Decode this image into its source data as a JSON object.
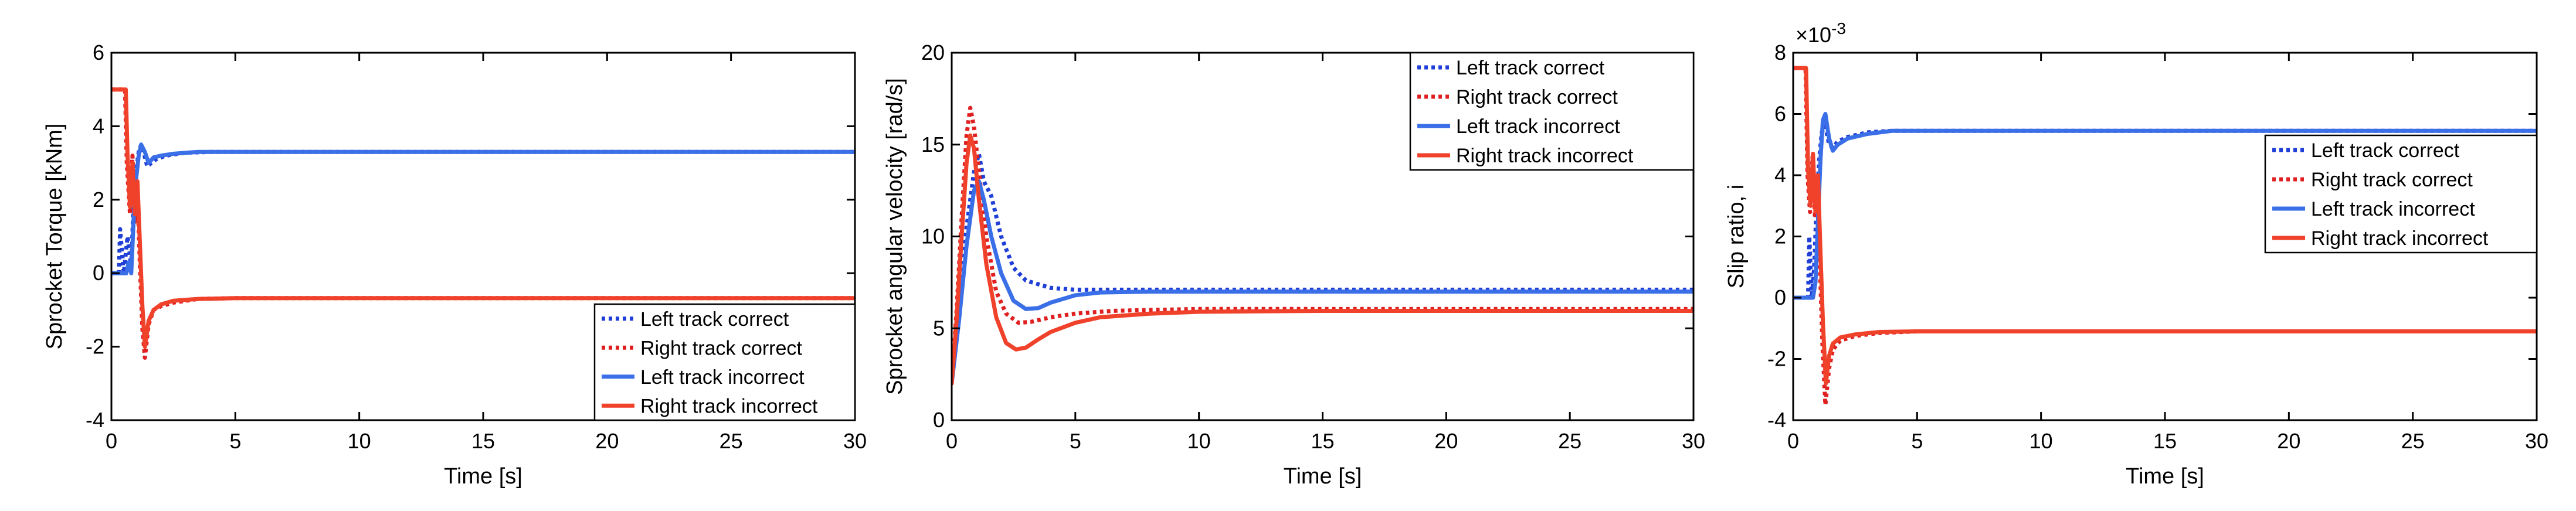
{
  "colors": {
    "blue_dotted": "#1f3fd6",
    "red_dotted": "#e02020",
    "blue_solid": "#3a6fe8",
    "red_solid": "#f0412b",
    "axis": "#000000"
  },
  "chart_data": [
    {
      "type": "line",
      "xlabel": "Time [s]",
      "ylabel": "Sprocket Torque [kNm]",
      "xlim": [
        0,
        30
      ],
      "ylim": [
        -4,
        6
      ],
      "xticks": [
        0,
        5,
        10,
        15,
        20,
        25,
        30
      ],
      "yticks": [
        -4,
        -2,
        0,
        2,
        4,
        6
      ],
      "legend": "bottom-right",
      "series": [
        {
          "name": "Left track correct",
          "style": "dotted",
          "color": "#1f3fd6",
          "x": [
            0,
            0.3,
            0.35,
            0.5,
            0.65,
            0.8,
            0.9,
            1.0,
            1.1,
            1.2,
            1.3,
            1.45,
            1.6,
            1.8,
            2.2,
            3.0,
            4.0,
            6.0,
            10,
            20,
            30
          ],
          "y": [
            0,
            0,
            1.2,
            0,
            1.0,
            0.2,
            2.0,
            2.8,
            3.3,
            3.5,
            3.3,
            2.9,
            3.0,
            3.1,
            3.2,
            3.28,
            3.3,
            3.3,
            3.3,
            3.3,
            3.3
          ]
        },
        {
          "name": "Right track correct",
          "style": "dotted",
          "color": "#e02020",
          "x": [
            0,
            0.05,
            0.55,
            0.62,
            0.75,
            0.85,
            0.95,
            1.05,
            1.15,
            1.25,
            1.35,
            1.5,
            1.7,
            2.0,
            2.5,
            3.5,
            5,
            10,
            20,
            30
          ],
          "y": [
            5,
            5,
            5,
            3.0,
            1.6,
            3.2,
            1.4,
            2.2,
            0.2,
            -1.5,
            -2.3,
            -1.4,
            -1.0,
            -0.9,
            -0.8,
            -0.7,
            -0.68,
            -0.68,
            -0.68,
            -0.68
          ]
        },
        {
          "name": "Left track incorrect",
          "style": "solid",
          "color": "#3a6fe8",
          "x": [
            0,
            0.6,
            0.7,
            0.8,
            0.9,
            1.0,
            1.1,
            1.2,
            1.35,
            1.5,
            1.7,
            2.0,
            2.5,
            3.5,
            5,
            10,
            20,
            30
          ],
          "y": [
            0,
            0,
            0.3,
            0,
            1.5,
            2.6,
            3.2,
            3.5,
            3.3,
            3.0,
            3.15,
            3.2,
            3.25,
            3.3,
            3.3,
            3.3,
            3.3,
            3.3
          ]
        },
        {
          "name": "Right track incorrect",
          "style": "solid",
          "color": "#f0412b",
          "x": [
            0,
            0.05,
            0.58,
            0.65,
            0.75,
            0.85,
            0.95,
            1.05,
            1.15,
            1.25,
            1.35,
            1.5,
            1.7,
            2.0,
            2.5,
            3.5,
            5,
            10,
            20,
            30
          ],
          "y": [
            5,
            5,
            5,
            3.2,
            1.8,
            3.0,
            1.6,
            2.5,
            0.8,
            -0.9,
            -2.0,
            -1.3,
            -1.0,
            -0.85,
            -0.75,
            -0.7,
            -0.68,
            -0.68,
            -0.68,
            -0.68
          ]
        }
      ]
    },
    {
      "type": "line",
      "xlabel": "Time [s]",
      "ylabel": "Sprocket angular velocity [rad/s]",
      "xlim": [
        0,
        30
      ],
      "ylim": [
        0,
        20
      ],
      "xticks": [
        0,
        5,
        10,
        15,
        20,
        25,
        30
      ],
      "yticks": [
        0,
        5,
        10,
        15,
        20
      ],
      "legend": "top-right",
      "series": [
        {
          "name": "Left track correct",
          "style": "dotted",
          "color": "#1f3fd6",
          "x": [
            0,
            0.3,
            0.6,
            0.9,
            1.1,
            1.3,
            1.6,
            2.0,
            2.5,
            3.0,
            4.0,
            5.0,
            7.0,
            10,
            15,
            20,
            30
          ],
          "y": [
            2.0,
            6.0,
            10.5,
            13.5,
            14.5,
            13.0,
            12.2,
            10.0,
            8.3,
            7.6,
            7.2,
            7.1,
            7.1,
            7.1,
            7.1,
            7.1,
            7.1
          ]
        },
        {
          "name": "Right track correct",
          "style": "dotted",
          "color": "#e02020",
          "x": [
            0,
            0.2,
            0.4,
            0.6,
            0.75,
            0.9,
            1.1,
            1.4,
            1.8,
            2.2,
            2.7,
            3.2,
            4.0,
            5.0,
            6.5,
            8.0,
            10,
            15,
            20,
            30
          ],
          "y": [
            2.0,
            6.0,
            11.0,
            15.5,
            17.0,
            16.0,
            13.5,
            10.0,
            7.0,
            5.8,
            5.3,
            5.35,
            5.6,
            5.8,
            5.95,
            6.0,
            6.05,
            6.05,
            6.05,
            6.05
          ]
        },
        {
          "name": "Left track incorrect",
          "style": "solid",
          "color": "#3a6fe8",
          "x": [
            0,
            0.3,
            0.6,
            0.9,
            1.1,
            1.3,
            1.6,
            2.0,
            2.5,
            3.0,
            3.5,
            4.0,
            5.0,
            6.0,
            8.0,
            10,
            15,
            20,
            30
          ],
          "y": [
            2.0,
            5.5,
            9.5,
            12.5,
            13.0,
            12.0,
            10.0,
            8.0,
            6.5,
            6.05,
            6.1,
            6.4,
            6.8,
            6.95,
            7.0,
            7.0,
            7.0,
            7.0,
            7.0
          ]
        },
        {
          "name": "Right track incorrect",
          "style": "solid",
          "color": "#f0412b",
          "x": [
            0,
            0.2,
            0.4,
            0.6,
            0.75,
            0.9,
            1.1,
            1.4,
            1.8,
            2.2,
            2.6,
            3.0,
            3.5,
            4.0,
            5.0,
            6.0,
            8.0,
            10,
            15,
            20,
            30
          ],
          "y": [
            2.0,
            5.5,
            10.0,
            14.0,
            15.5,
            14.8,
            12.0,
            8.5,
            5.6,
            4.2,
            3.85,
            3.95,
            4.4,
            4.8,
            5.3,
            5.6,
            5.8,
            5.9,
            5.95,
            5.95,
            5.95
          ]
        }
      ]
    },
    {
      "type": "line",
      "xlabel": "Time [s]",
      "ylabel": "Slip ratio, i",
      "y_exponent_label": "×10",
      "y_exponent": "-3",
      "xlim": [
        0,
        30
      ],
      "ylim": [
        -4,
        8
      ],
      "xticks": [
        0,
        5,
        10,
        15,
        20,
        25,
        30
      ],
      "yticks": [
        -4,
        -2,
        0,
        2,
        4,
        6,
        8
      ],
      "legend": "center-right",
      "series": [
        {
          "name": "Left track correct",
          "style": "dotted",
          "color": "#1f3fd6",
          "x": [
            0,
            0.6,
            0.65,
            0.75,
            0.85,
            0.95,
            1.05,
            1.15,
            1.3,
            1.45,
            1.6,
            1.8,
            2.2,
            3.0,
            4.0,
            6.0,
            10,
            20,
            30
          ],
          "y": [
            0,
            0,
            2.0,
            0,
            1.0,
            3.2,
            4.5,
            5.4,
            5.6,
            5.0,
            4.9,
            5.1,
            5.25,
            5.4,
            5.45,
            5.45,
            5.45,
            5.45,
            5.45
          ]
        },
        {
          "name": "Right track correct",
          "style": "dotted",
          "color": "#e02020",
          "x": [
            0,
            0.05,
            0.5,
            0.58,
            0.68,
            0.78,
            0.88,
            0.98,
            1.08,
            1.18,
            1.3,
            1.45,
            1.6,
            1.9,
            2.5,
            3.5,
            5,
            10,
            20,
            30
          ],
          "y": [
            7.5,
            7.5,
            7.5,
            4.0,
            2.8,
            4.6,
            2.6,
            3.8,
            1.0,
            -1.5,
            -3.5,
            -2.3,
            -1.7,
            -1.4,
            -1.25,
            -1.15,
            -1.1,
            -1.1,
            -1.1,
            -1.1
          ]
        },
        {
          "name": "Left track incorrect",
          "style": "solid",
          "color": "#3a6fe8",
          "x": [
            0,
            0.8,
            0.9,
            1.0,
            1.1,
            1.2,
            1.3,
            1.45,
            1.6,
            1.8,
            2.2,
            3.0,
            4.0,
            6.0,
            10,
            20,
            30
          ],
          "y": [
            0,
            0,
            0.5,
            2.5,
            4.5,
            5.8,
            6.0,
            5.2,
            4.8,
            5.0,
            5.2,
            5.35,
            5.45,
            5.45,
            5.45,
            5.45,
            5.45
          ]
        },
        {
          "name": "Right track incorrect",
          "style": "solid",
          "color": "#f0412b",
          "x": [
            0,
            0.05,
            0.52,
            0.6,
            0.7,
            0.8,
            0.9,
            1.0,
            1.1,
            1.2,
            1.32,
            1.45,
            1.6,
            1.9,
            2.5,
            3.5,
            5,
            10,
            20,
            30
          ],
          "y": [
            7.5,
            7.5,
            7.5,
            4.2,
            3.0,
            4.7,
            2.8,
            4.0,
            1.5,
            -0.8,
            -2.8,
            -1.9,
            -1.5,
            -1.3,
            -1.2,
            -1.12,
            -1.1,
            -1.1,
            -1.1,
            -1.1
          ]
        }
      ]
    }
  ]
}
